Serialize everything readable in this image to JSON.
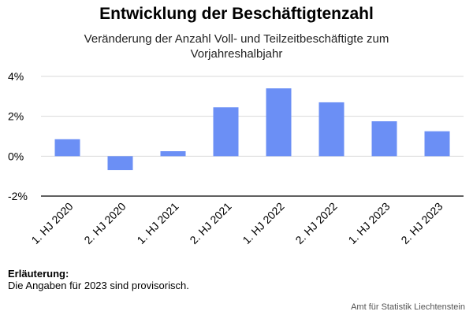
{
  "header": {
    "title": "Entwicklung der Beschäftigtenzahl",
    "subtitle": "Veränderung der Anzahl Voll- und Teilzeitbeschäftigte zum Vorjahreshalbjahr"
  },
  "note": {
    "heading": "Erläuterung:",
    "text": "Die Angaben für 2023 sind provisorisch."
  },
  "source": "Amt für Statistik Liechtenstein",
  "colors": {
    "bar": "#6b8ff5",
    "grid": "#d9d9d9",
    "axis": "#000000"
  },
  "chart_data": {
    "type": "bar",
    "categories": [
      "1. HJ 2020",
      "2. HJ 2020",
      "1. HJ 2021",
      "2. HJ 2021",
      "1. HJ 2022",
      "2. HJ 2022",
      "1. HJ 2023",
      "2. HJ 2023"
    ],
    "values": [
      0.85,
      -0.7,
      0.25,
      2.45,
      3.4,
      2.7,
      1.75,
      1.25
    ],
    "ylim": [
      -2,
      4
    ],
    "yticks": [
      -2,
      0,
      2,
      4
    ],
    "ytick_labels": [
      "-2%",
      "0%",
      "2%",
      "4%"
    ],
    "grid": true
  }
}
